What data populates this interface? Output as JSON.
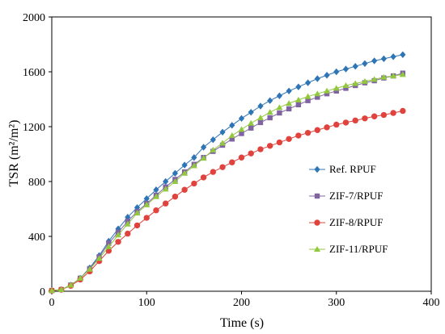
{
  "chart_data": {
    "type": "line",
    "xlabel": "Time (s)",
    "ylabel": "TSR (m²/m²)",
    "xlim": [
      0,
      400
    ],
    "ylim": [
      0,
      2000
    ],
    "xticks": [
      "0",
      "100",
      "200",
      "300",
      "400"
    ],
    "yticks": [
      "0",
      "400",
      "800",
      "1200",
      "1600",
      "2000"
    ],
    "grid": false,
    "legend_position": "right",
    "x": [
      0,
      10,
      20,
      30,
      40,
      50,
      60,
      70,
      80,
      90,
      100,
      110,
      120,
      130,
      140,
      150,
      160,
      170,
      180,
      190,
      200,
      210,
      220,
      230,
      240,
      250,
      260,
      270,
      280,
      290,
      300,
      310,
      320,
      330,
      340,
      350,
      360,
      370
    ],
    "series": [
      {
        "name": "Ref. RPUF",
        "color": "#2e75b6",
        "marker": "diamond",
        "values": [
          5,
          12,
          45,
          95,
          170,
          260,
          365,
          455,
          540,
          610,
          675,
          740,
          800,
          860,
          920,
          975,
          1050,
          1105,
          1160,
          1210,
          1260,
          1305,
          1350,
          1390,
          1425,
          1460,
          1490,
          1520,
          1550,
          1575,
          1600,
          1620,
          1640,
          1660,
          1680,
          1695,
          1710,
          1725
        ]
      },
      {
        "name": "ZIF-7/RPUF",
        "color": "#8064a2",
        "marker": "square",
        "values": [
          5,
          12,
          45,
          95,
          165,
          250,
          350,
          430,
          510,
          580,
          640,
          700,
          760,
          815,
          870,
          925,
          975,
          1020,
          1065,
          1110,
          1150,
          1190,
          1230,
          1265,
          1300,
          1330,
          1360,
          1390,
          1415,
          1440,
          1460,
          1480,
          1500,
          1520,
          1535,
          1555,
          1570,
          1590
        ]
      },
      {
        "name": "ZIF-8/RPUF",
        "color": "#e0433d",
        "marker": "circle",
        "values": [
          5,
          12,
          40,
          85,
          145,
          220,
          295,
          360,
          420,
          480,
          535,
          590,
          640,
          690,
          740,
          785,
          830,
          870,
          905,
          940,
          975,
          1005,
          1035,
          1060,
          1085,
          1110,
          1135,
          1155,
          1175,
          1195,
          1215,
          1230,
          1245,
          1260,
          1275,
          1285,
          1300,
          1315
        ]
      },
      {
        "name": "ZIF-11/RPUF",
        "color": "#92c83e",
        "marker": "triangle",
        "values": [
          5,
          12,
          45,
          95,
          160,
          240,
          325,
          410,
          490,
          570,
          630,
          690,
          745,
          800,
          860,
          915,
          970,
          1030,
          1080,
          1135,
          1180,
          1225,
          1265,
          1305,
          1340,
          1370,
          1395,
          1420,
          1440,
          1460,
          1480,
          1500,
          1515,
          1530,
          1545,
          1560,
          1570,
          1580
        ]
      }
    ]
  }
}
